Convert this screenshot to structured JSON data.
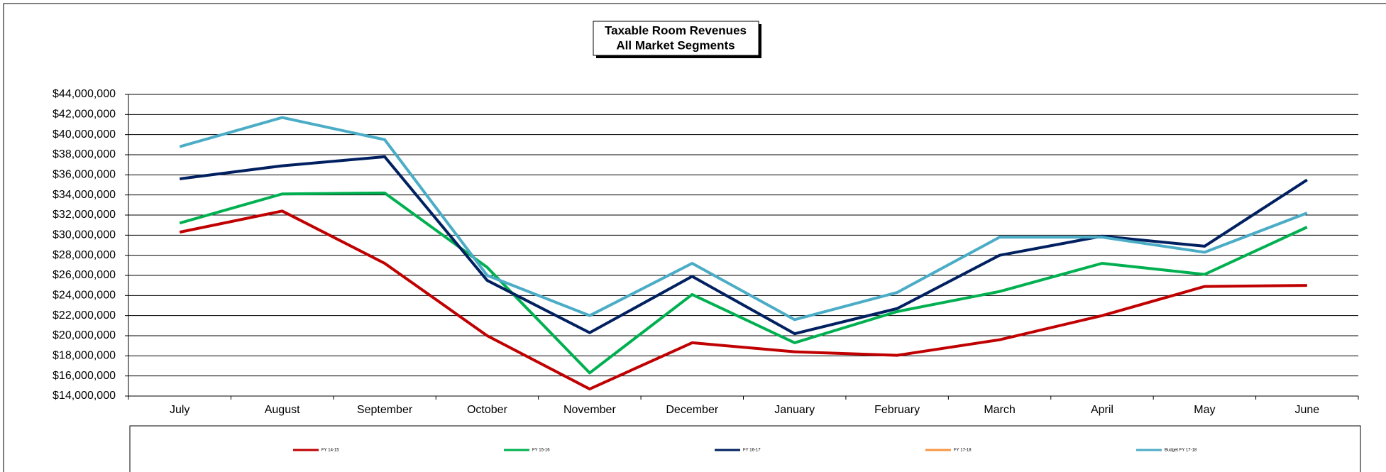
{
  "chart_data": {
    "type": "line",
    "title": "Taxable Room Revenues",
    "subtitle": "All Market Segments",
    "categories": [
      "July",
      "August",
      "September",
      "October",
      "November",
      "December",
      "January",
      "February",
      "March",
      "April",
      "May",
      "June"
    ],
    "series": [
      {
        "name": "FY 14-15",
        "color": "#c00000",
        "values": [
          30300000,
          32400000,
          27200000,
          20000000,
          14700000,
          19300000,
          18400000,
          18050000,
          19600000,
          22000000,
          24900000,
          25000000
        ]
      },
      {
        "name": "FY 15-16",
        "color": "#00b050",
        "values": [
          31200000,
          34100000,
          34200000,
          26800000,
          16300000,
          24100000,
          19300000,
          22400000,
          24400000,
          27200000,
          26100000,
          30800000
        ]
      },
      {
        "name": "FY 16-17",
        "color": "#002060",
        "values": [
          35600000,
          36900000,
          37800000,
          25500000,
          20300000,
          25900000,
          20200000,
          22700000,
          28000000,
          29900000,
          28900000,
          35500000
        ]
      },
      {
        "name": "FY 17-18",
        "color": "#f79646",
        "values": [
          null,
          null,
          null,
          null,
          null,
          null,
          null,
          null,
          null,
          null,
          null,
          null
        ]
      },
      {
        "name": "Budget FY 17-18",
        "color": "#4bacc6",
        "values": [
          38800000,
          41700000,
          39500000,
          26000000,
          22000000,
          27200000,
          21600000,
          24300000,
          29800000,
          29800000,
          28300000,
          32200000
        ]
      }
    ],
    "ylim": [
      14000000,
      44000000
    ],
    "yticks": [
      {
        "value": 14000000,
        "label": "$14,000,000"
      },
      {
        "value": 16000000,
        "label": "$16,000,000"
      },
      {
        "value": 18000000,
        "label": "$18,000,000"
      },
      {
        "value": 20000000,
        "label": "$20,000,000"
      },
      {
        "value": 22000000,
        "label": "$22,000,000"
      },
      {
        "value": 24000000,
        "label": "$24,000,000"
      },
      {
        "value": 26000000,
        "label": "$26,000,000"
      },
      {
        "value": 28000000,
        "label": "$28,000,000"
      },
      {
        "value": 30000000,
        "label": "$30,000,000"
      },
      {
        "value": 32000000,
        "label": "$32,000,000"
      },
      {
        "value": 34000000,
        "label": "$34,000,000"
      },
      {
        "value": 36000000,
        "label": "$36,000,000"
      },
      {
        "value": 38000000,
        "label": "$38,000,000"
      },
      {
        "value": 40000000,
        "label": "$40,000,000"
      },
      {
        "value": 42000000,
        "label": "$42,000,000"
      },
      {
        "value": 44000000,
        "label": "$44,000,000"
      }
    ],
    "grid": true,
    "legend": "bottom"
  }
}
